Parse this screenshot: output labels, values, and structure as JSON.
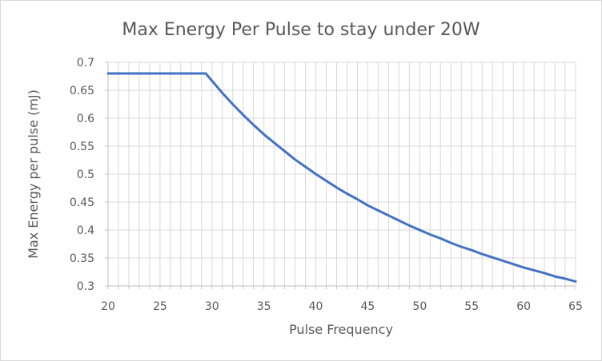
{
  "chart_data": {
    "type": "line",
    "title": "Max Energy Per Pulse to stay under 20W",
    "xlabel": "Pulse Frequency",
    "ylabel": "Max Energy per pulse (mJ)",
    "xlim": [
      20,
      65
    ],
    "ylim": [
      0.3,
      0.7
    ],
    "x_ticks": [
      "20",
      "25",
      "30",
      "35",
      "40",
      "45",
      "50",
      "55",
      "60",
      "65"
    ],
    "y_ticks": [
      "0.3",
      "0.35",
      "0.4",
      "0.45",
      "0.5",
      "0.55",
      "0.6",
      "0.65",
      "0.7"
    ],
    "grid": true,
    "legend": "none",
    "series": [
      {
        "color": "#4472c4",
        "x": [
          20,
          21,
          22,
          23,
          24,
          25,
          26,
          27,
          28,
          29,
          29.4,
          30,
          31,
          32,
          33,
          34,
          35,
          36,
          37,
          38,
          39,
          40,
          41,
          42,
          43,
          44,
          45,
          46,
          47,
          48,
          49,
          50,
          51,
          52,
          53,
          54,
          55,
          56,
          57,
          58,
          59,
          60,
          61,
          62,
          63,
          64,
          65
        ],
        "y": [
          0.68,
          0.68,
          0.68,
          0.68,
          0.68,
          0.68,
          0.68,
          0.68,
          0.68,
          0.68,
          0.68,
          0.667,
          0.645,
          0.625,
          0.606,
          0.588,
          0.571,
          0.556,
          0.541,
          0.526,
          0.513,
          0.5,
          0.488,
          0.476,
          0.465,
          0.455,
          0.444,
          0.435,
          0.426,
          0.417,
          0.408,
          0.4,
          0.392,
          0.385,
          0.377,
          0.37,
          0.364,
          0.357,
          0.351,
          0.345,
          0.339,
          0.333,
          0.328,
          0.323,
          0.317,
          0.313,
          0.308
        ]
      }
    ]
  }
}
